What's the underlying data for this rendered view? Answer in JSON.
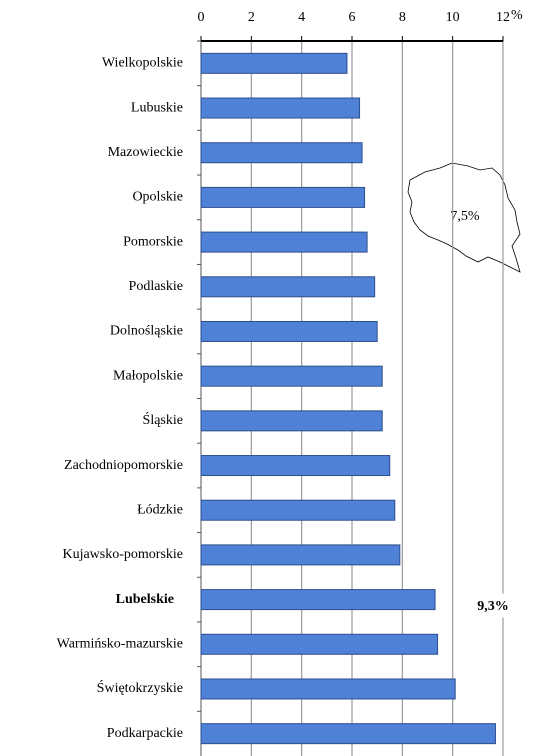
{
  "chart_data": {
    "type": "barh",
    "categories": [
      "Wielkopolskie",
      "Lubuskie",
      "Mazowieckie",
      "Opolskie",
      "Pomorskie",
      "Podlaskie",
      "Dolnośląskie",
      "Małopolskie",
      "Śląskie",
      "Zachodniopomorskie",
      "Łódzkie",
      "Kujawsko-pomorskie",
      "Lubelskie",
      "Warmińsko-mazurskie",
      "Świętokrzyskie",
      "Podkarpackie"
    ],
    "values": [
      5.8,
      6.3,
      6.4,
      6.5,
      6.6,
      6.9,
      7.0,
      7.2,
      7.2,
      7.5,
      7.7,
      7.9,
      9.3,
      9.4,
      10.1,
      11.7
    ],
    "color": "#4f81d6",
    "xlim": [
      0,
      12
    ],
    "xticks": [
      0,
      2,
      4,
      6,
      8,
      10,
      12
    ],
    "grid": true,
    "unit": "%",
    "highlight": "Lubelskie",
    "annotations": [
      "7,5%",
      "9,3%"
    ]
  }
}
